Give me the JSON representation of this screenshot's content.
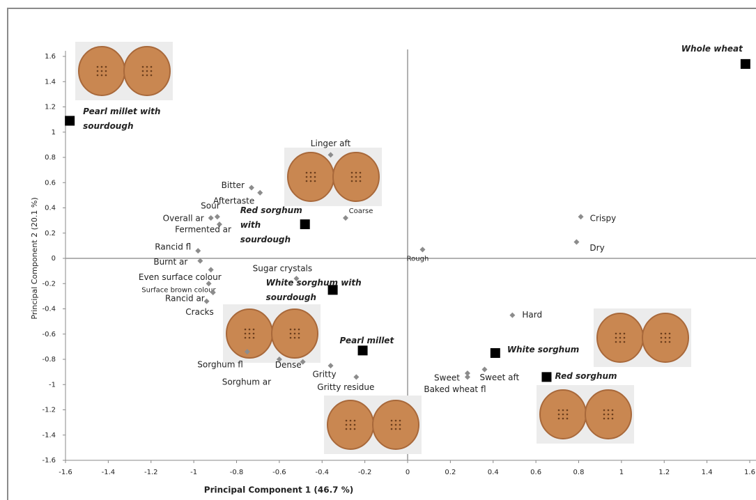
{
  "chart_data": {
    "type": "scatter",
    "xlabel": "Principal Component 1 (46.7 %)",
    "ylabel": "Principal Component 2 (20.1 %)",
    "xlim": [
      -1.6,
      1.6
    ],
    "ylim": [
      -1.6,
      1.6
    ],
    "xticks": [
      -1.6,
      -1.4,
      -1.2,
      -1,
      -0.8,
      -0.6,
      -0.4,
      -0.2,
      0,
      0.2,
      0.4,
      0.6,
      0.8,
      1,
      1.2,
      1.4,
      1.6
    ],
    "yticks": [
      -1.6,
      -1.4,
      -1.2,
      -1,
      -0.8,
      -0.6,
      -0.4,
      -0.2,
      0,
      0.2,
      0.4,
      0.6,
      0.8,
      1,
      1.2,
      1.4,
      1.6
    ],
    "series": [
      {
        "color": "#8c8c8c",
        "marker": "diamond",
        "labels": [
          "Linger aft",
          "Bitter",
          "Aftertaste",
          "Sour",
          "Overall ar",
          "Fermented ar",
          "Coarse",
          "Rancid fl",
          "Burnt ar",
          "Even surface colour",
          "Surface brown colour",
          "Rancid ar",
          "Cracks",
          "Sugar crystals",
          "Rough",
          "Crispy",
          "Dry",
          "Hard",
          "Sweet",
          "Sweet aft",
          "Baked wheat fl",
          "Gritty",
          "Gritty residue",
          "Dense",
          "Sorghum fl",
          "Sorghum ar"
        ],
        "x": [
          -0.36,
          -0.73,
          -0.69,
          -0.89,
          -0.92,
          -0.88,
          -0.29,
          -0.98,
          -0.97,
          -0.92,
          -0.93,
          -0.91,
          -0.94,
          -0.52,
          0.07,
          0.81,
          0.79,
          0.49,
          0.28,
          0.36,
          0.28,
          -0.36,
          -0.24,
          -0.49,
          -0.75,
          -0.6
        ],
        "values": [
          0.82,
          0.56,
          0.52,
          0.33,
          0.32,
          0.27,
          0.32,
          0.06,
          -0.02,
          -0.09,
          -0.2,
          -0.27,
          -0.34,
          -0.16,
          0.07,
          0.33,
          0.13,
          -0.45,
          -0.91,
          -0.88,
          -0.94,
          -0.85,
          -0.94,
          -0.82,
          -0.74,
          -0.8
        ]
      },
      {
        "color": "#000000",
        "marker": "square",
        "labels": [
          "Whole wheat",
          "Pearl millet with sourdough",
          "Red sorghum with sourdough",
          "White sorghum with sourdough",
          "Pearl millet",
          "White sorghum",
          "Red sorghum"
        ],
        "x": [
          1.58,
          -1.58,
          -0.48,
          -0.35,
          -0.21,
          0.41,
          0.65
        ],
        "values": [
          1.54,
          1.09,
          0.27,
          -0.25,
          -0.73,
          -0.75,
          -0.94
        ]
      }
    ]
  }
}
